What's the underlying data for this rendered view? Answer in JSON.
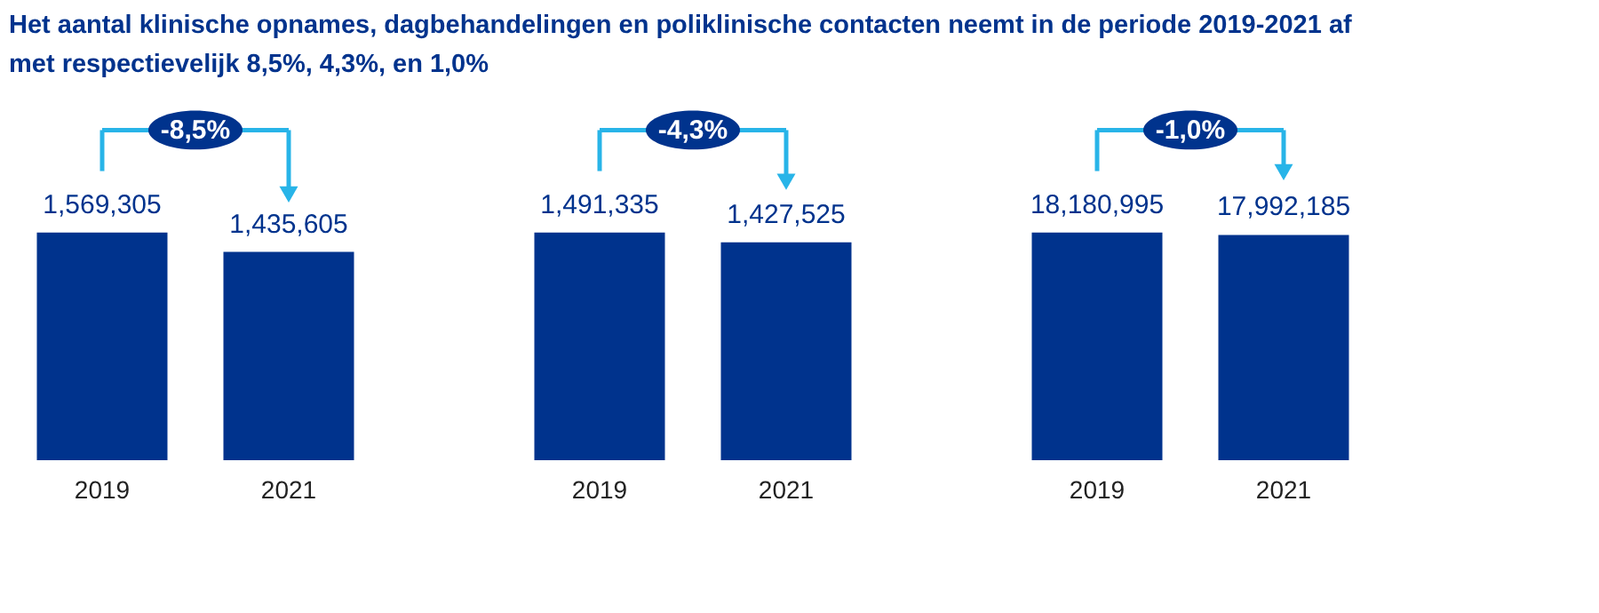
{
  "chart_data": [
    {
      "type": "bar",
      "title": "Het aantal klinische opnames, dagbehandelingen en poliklinische contacten neemt in de periode 2019-2021 af met respectievelijk 8,5%, 4,3%, en 1,0%",
      "categories": [
        "2019",
        "2021"
      ],
      "values": [
        1569305,
        1435605
      ],
      "value_labels": [
        "1,569,305",
        "1,435,605"
      ],
      "color": "#00338d",
      "annotations": [
        "-8,5%"
      ]
    },
    {
      "type": "bar",
      "categories": [
        "2019",
        "2021"
      ],
      "values": [
        1491335,
        1427525
      ],
      "value_labels": [
        "1,491,335",
        "1,427,525"
      ],
      "color": "#00338d",
      "annotations": [
        "-4,3%"
      ]
    },
    {
      "type": "bar",
      "categories": [
        "2019",
        "2021"
      ],
      "values": [
        18180995,
        17992185
      ],
      "value_labels": [
        "18,180,995",
        "17,992,185"
      ],
      "color": "#00338d",
      "annotations": [
        "-1,0%"
      ]
    }
  ]
}
